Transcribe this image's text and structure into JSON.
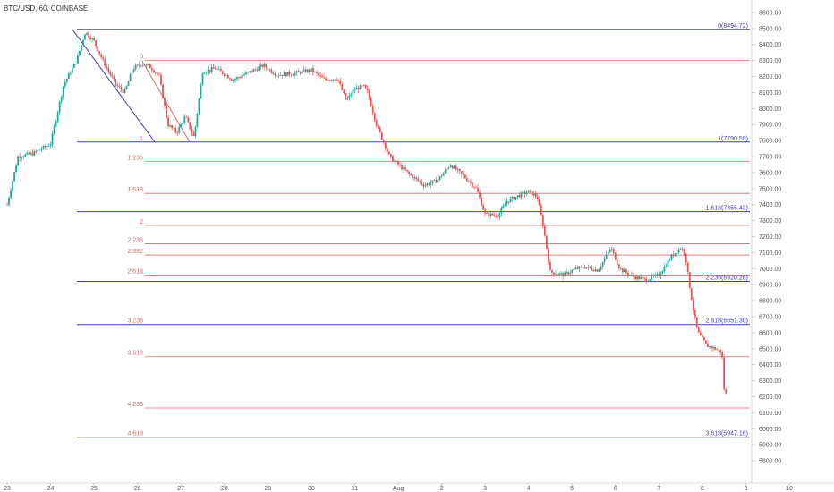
{
  "header": {
    "symbol_label": "BTC/USD, 60, COINBASE"
  },
  "colors": {
    "up": "#26a69a",
    "down": "#ef5350",
    "blue_line": "#3f3fc4",
    "red_line": "#e06666",
    "axis_text": "#555555",
    "background": "#ffffff"
  },
  "chart_data": {
    "type": "candlestick",
    "title": "BTC/USD, 60, COINBASE",
    "ylim": [
      5750,
      8650
    ],
    "x_axis_labels": [
      "23",
      "24",
      "25",
      "26",
      "27",
      "28",
      "29",
      "30",
      "31",
      "Aug",
      "2",
      "3",
      "4",
      "5",
      "6",
      "7",
      "8",
      "9",
      "10"
    ],
    "y_axis_labels": [
      "8600.00",
      "8500.00",
      "8400.00",
      "8300.00",
      "8200.00",
      "8100.00",
      "8000.00",
      "7900.00",
      "7800.00",
      "7700.00",
      "7600.00",
      "7500.00",
      "7400.00",
      "7300.00",
      "7200.00",
      "7100.00",
      "7000.00",
      "6900.00",
      "6800.00",
      "6700.00",
      "6600.00",
      "6500.00",
      "6400.00",
      "6300.00",
      "6200.00",
      "6100.00",
      "6000.00",
      "5900.00",
      "5800.00"
    ],
    "price_path": [
      [
        23.0,
        7400
      ],
      [
        23.25,
        7700
      ],
      [
        23.6,
        7720
      ],
      [
        24.0,
        7780
      ],
      [
        24.3,
        8150
      ],
      [
        24.6,
        8300
      ],
      [
        24.8,
        8480
      ],
      [
        25.0,
        8420
      ],
      [
        25.2,
        8300
      ],
      [
        25.5,
        8150
      ],
      [
        25.7,
        8100
      ],
      [
        25.9,
        8250
      ],
      [
        26.1,
        8280
      ],
      [
        26.3,
        8260
      ],
      [
        26.5,
        8200
      ],
      [
        26.7,
        7900
      ],
      [
        26.9,
        7850
      ],
      [
        27.1,
        7950
      ],
      [
        27.3,
        7820
      ],
      [
        27.5,
        8230
      ],
      [
        27.8,
        8250
      ],
      [
        28.2,
        8180
      ],
      [
        28.6,
        8230
      ],
      [
        28.9,
        8270
      ],
      [
        29.2,
        8210
      ],
      [
        29.6,
        8220
      ],
      [
        30.0,
        8240
      ],
      [
        30.3,
        8180
      ],
      [
        30.6,
        8190
      ],
      [
        30.8,
        8050
      ],
      [
        31.0,
        8120
      ],
      [
        31.2,
        8140
      ],
      [
        31.3,
        8100
      ],
      [
        31.5,
        7900
      ],
      [
        31.8,
        7700
      ],
      [
        32.0,
        7650
      ],
      [
        32.3,
        7580
      ],
      [
        32.6,
        7520
      ],
      [
        32.9,
        7550
      ],
      [
        33.2,
        7650
      ],
      [
        33.5,
        7580
      ],
      [
        33.8,
        7500
      ],
      [
        34.0,
        7340
      ],
      [
        34.3,
        7330
      ],
      [
        34.5,
        7420
      ],
      [
        34.8,
        7460
      ],
      [
        35.0,
        7480
      ],
      [
        35.2,
        7450
      ],
      [
        35.35,
        7250
      ],
      [
        35.5,
        6980
      ],
      [
        35.8,
        6960
      ],
      [
        36.1,
        7000
      ],
      [
        36.3,
        7010
      ],
      [
        36.6,
        6990
      ],
      [
        36.9,
        7130
      ],
      [
        37.1,
        7000
      ],
      [
        37.4,
        6950
      ],
      [
        37.7,
        6930
      ],
      [
        38.0,
        6960
      ],
      [
        38.3,
        7080
      ],
      [
        38.5,
        7130
      ],
      [
        38.6,
        7100
      ],
      [
        38.7,
        6900
      ],
      [
        38.8,
        6730
      ],
      [
        38.9,
        6600
      ],
      [
        39.1,
        6520
      ],
      [
        39.3,
        6500
      ],
      [
        39.45,
        6480
      ],
      [
        39.5,
        6250
      ],
      [
        39.55,
        6210
      ]
    ],
    "lines": [
      {
        "level": 8494.72,
        "color": "blue",
        "label": "0(8494.72)",
        "side": "right"
      },
      {
        "level": 8300,
        "color": "red",
        "label": "0",
        "side": "left"
      },
      {
        "level": 7790.59,
        "color": "blue",
        "label": "1(7790.59)",
        "side": "right",
        "left_label": "1"
      },
      {
        "level": 7670,
        "color": "red",
        "label": "1.236",
        "side": "left"
      },
      {
        "level": 7470,
        "color": "red",
        "label": "1.618",
        "side": "left"
      },
      {
        "level": 7355.43,
        "color": "blue",
        "label": "1.618(7355.43)",
        "side": "right"
      },
      {
        "level": 7270,
        "color": "red",
        "label": "2",
        "side": "left"
      },
      {
        "level": 7155,
        "color": "red",
        "label": "2.236",
        "side": "left"
      },
      {
        "level": 7085,
        "color": "red",
        "label": "2.382",
        "side": "left"
      },
      {
        "level": 6960,
        "color": "red",
        "label": "2.618",
        "side": "left"
      },
      {
        "level": 6920.28,
        "color": "blue",
        "label": "2.236(6920.28)",
        "side": "right"
      },
      {
        "level": 6651.3,
        "color": "blue",
        "label": "2.618(6651.30)",
        "side": "right",
        "left_label": "3.236"
      },
      {
        "level": 6450,
        "color": "red",
        "label": "3.618",
        "side": "left"
      },
      {
        "level": 6130,
        "color": "red",
        "label": "4.236",
        "side": "left"
      },
      {
        "level": 5947.16,
        "color": "blue",
        "label": "3.618(5947.16)",
        "side": "right",
        "left_label": "4.618"
      }
    ],
    "diagonals": [
      {
        "color": "blue",
        "from": [
          24.5,
          8494.72
        ],
        "to": [
          26.4,
          7790.59
        ]
      },
      {
        "color": "red",
        "from": [
          26.1,
          8300
        ],
        "to": [
          27.2,
          7790.59
        ]
      }
    ]
  }
}
